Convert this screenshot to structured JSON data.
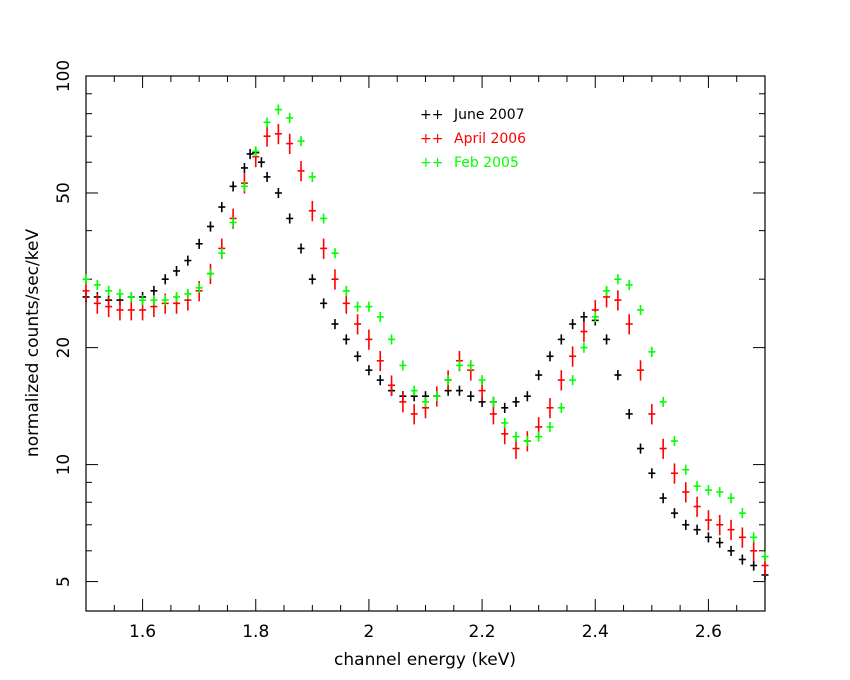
{
  "chart_data": {
    "type": "scatter",
    "title": "",
    "xlabel": "channel energy (keV)",
    "ylabel": "normalized counts/sec/keV",
    "xlim": [
      1.5,
      2.7
    ],
    "ylim": [
      4.2,
      100
    ],
    "yscale": "log",
    "xticks": [
      1.6,
      1.8,
      2,
      2.2,
      2.4,
      2.6
    ],
    "xticklabels": [
      "1.6",
      "1.8",
      "2",
      "2.2",
      "2.4",
      "2.6"
    ],
    "yticks": [
      5,
      10,
      20,
      50,
      100
    ],
    "yticklabels": [
      "5",
      "10",
      "20",
      "50",
      "100"
    ],
    "legend_position": "top-center",
    "series": [
      {
        "name": "June 2007",
        "color": "#000000",
        "points": [
          [
            1.5,
            27
          ],
          [
            1.52,
            27
          ],
          [
            1.54,
            26.5
          ],
          [
            1.56,
            26.5
          ],
          [
            1.58,
            27
          ],
          [
            1.6,
            27
          ],
          [
            1.62,
            28
          ],
          [
            1.64,
            30
          ],
          [
            1.66,
            31.5
          ],
          [
            1.68,
            33.5
          ],
          [
            1.7,
            37
          ],
          [
            1.72,
            41
          ],
          [
            1.74,
            46
          ],
          [
            1.76,
            52
          ],
          [
            1.78,
            58
          ],
          [
            1.79,
            63
          ],
          [
            1.8,
            63.5
          ],
          [
            1.81,
            60
          ],
          [
            1.82,
            55
          ],
          [
            1.84,
            50
          ],
          [
            1.86,
            43
          ],
          [
            1.88,
            36
          ],
          [
            1.9,
            30
          ],
          [
            1.92,
            26
          ],
          [
            1.94,
            23
          ],
          [
            1.96,
            21
          ],
          [
            1.98,
            19
          ],
          [
            2.0,
            17.5
          ],
          [
            2.02,
            16.5
          ],
          [
            2.04,
            15.5
          ],
          [
            2.06,
            15
          ],
          [
            2.08,
            15
          ],
          [
            2.1,
            15
          ],
          [
            2.12,
            15
          ],
          [
            2.14,
            15.5
          ],
          [
            2.16,
            15.5
          ],
          [
            2.18,
            15
          ],
          [
            2.2,
            14.5
          ],
          [
            2.22,
            14.5
          ],
          [
            2.24,
            14
          ],
          [
            2.26,
            14.5
          ],
          [
            2.28,
            15
          ],
          [
            2.3,
            17
          ],
          [
            2.32,
            19
          ],
          [
            2.34,
            21
          ],
          [
            2.36,
            23
          ],
          [
            2.38,
            24
          ],
          [
            2.4,
            23.5
          ],
          [
            2.42,
            21
          ],
          [
            2.44,
            17
          ],
          [
            2.46,
            13.5
          ],
          [
            2.48,
            11
          ],
          [
            2.5,
            9.5
          ],
          [
            2.52,
            8.2
          ],
          [
            2.54,
            7.5
          ],
          [
            2.56,
            7
          ],
          [
            2.58,
            6.8
          ],
          [
            2.6,
            6.5
          ],
          [
            2.62,
            6.3
          ],
          [
            2.64,
            6
          ],
          [
            2.66,
            5.7
          ],
          [
            2.68,
            5.5
          ],
          [
            2.7,
            5.2
          ]
        ]
      },
      {
        "name": "April 2006",
        "color": "#ff0000",
        "points": [
          [
            1.5,
            28
          ],
          [
            1.52,
            26
          ],
          [
            1.54,
            25.5
          ],
          [
            1.56,
            25
          ],
          [
            1.58,
            25
          ],
          [
            1.6,
            25
          ],
          [
            1.62,
            25.5
          ],
          [
            1.64,
            26
          ],
          [
            1.66,
            26
          ],
          [
            1.68,
            26.5
          ],
          [
            1.7,
            28
          ],
          [
            1.72,
            31
          ],
          [
            1.74,
            36
          ],
          [
            1.76,
            43
          ],
          [
            1.78,
            53
          ],
          [
            1.8,
            62
          ],
          [
            1.82,
            70
          ],
          [
            1.84,
            71
          ],
          [
            1.86,
            67
          ],
          [
            1.88,
            57
          ],
          [
            1.9,
            45
          ],
          [
            1.92,
            36
          ],
          [
            1.94,
            30
          ],
          [
            1.96,
            26
          ],
          [
            1.98,
            23
          ],
          [
            2.0,
            21
          ],
          [
            2.02,
            18.5
          ],
          [
            2.04,
            16
          ],
          [
            2.06,
            14.5
          ],
          [
            2.08,
            13.5
          ],
          [
            2.1,
            14
          ],
          [
            2.12,
            15
          ],
          [
            2.14,
            16.5
          ],
          [
            2.16,
            18.5
          ],
          [
            2.18,
            17.5
          ],
          [
            2.2,
            15.5
          ],
          [
            2.22,
            13.5
          ],
          [
            2.24,
            12
          ],
          [
            2.26,
            11
          ],
          [
            2.28,
            11.5
          ],
          [
            2.3,
            12.5
          ],
          [
            2.32,
            14
          ],
          [
            2.34,
            16.5
          ],
          [
            2.36,
            19
          ],
          [
            2.38,
            22
          ],
          [
            2.4,
            25
          ],
          [
            2.42,
            27
          ],
          [
            2.44,
            26.5
          ],
          [
            2.46,
            23
          ],
          [
            2.48,
            17.5
          ],
          [
            2.5,
            13.5
          ],
          [
            2.52,
            11
          ],
          [
            2.54,
            9.5
          ],
          [
            2.56,
            8.5
          ],
          [
            2.58,
            7.8
          ],
          [
            2.6,
            7.2
          ],
          [
            2.62,
            7
          ],
          [
            2.64,
            6.8
          ],
          [
            2.66,
            6.5
          ],
          [
            2.68,
            6
          ],
          [
            2.7,
            5.5
          ]
        ]
      },
      {
        "name": "Feb 2005",
        "color": "#00ff00",
        "points": [
          [
            1.5,
            30
          ],
          [
            1.52,
            29
          ],
          [
            1.54,
            28
          ],
          [
            1.56,
            27.5
          ],
          [
            1.58,
            27
          ],
          [
            1.6,
            26.5
          ],
          [
            1.62,
            26.5
          ],
          [
            1.64,
            26.5
          ],
          [
            1.66,
            27
          ],
          [
            1.68,
            27.5
          ],
          [
            1.7,
            28.5
          ],
          [
            1.72,
            31
          ],
          [
            1.74,
            35
          ],
          [
            1.76,
            42
          ],
          [
            1.78,
            52
          ],
          [
            1.8,
            64
          ],
          [
            1.82,
            76
          ],
          [
            1.84,
            82
          ],
          [
            1.86,
            78
          ],
          [
            1.88,
            68
          ],
          [
            1.9,
            55
          ],
          [
            1.92,
            43
          ],
          [
            1.94,
            35
          ],
          [
            1.96,
            28
          ],
          [
            1.98,
            25.5
          ],
          [
            2.0,
            25.5
          ],
          [
            2.02,
            24
          ],
          [
            2.04,
            21
          ],
          [
            2.06,
            18
          ],
          [
            2.08,
            15.5
          ],
          [
            2.1,
            14.5
          ],
          [
            2.12,
            15
          ],
          [
            2.14,
            16.5
          ],
          [
            2.16,
            18
          ],
          [
            2.18,
            18
          ],
          [
            2.2,
            16.5
          ],
          [
            2.22,
            14.5
          ],
          [
            2.24,
            12.8
          ],
          [
            2.26,
            11.8
          ],
          [
            2.28,
            11.5
          ],
          [
            2.3,
            11.8
          ],
          [
            2.32,
            12.5
          ],
          [
            2.34,
            14
          ],
          [
            2.36,
            16.5
          ],
          [
            2.38,
            20
          ],
          [
            2.4,
            24
          ],
          [
            2.42,
            28
          ],
          [
            2.44,
            30
          ],
          [
            2.46,
            29
          ],
          [
            2.48,
            25
          ],
          [
            2.5,
            19.5
          ],
          [
            2.52,
            14.5
          ],
          [
            2.54,
            11.5
          ],
          [
            2.56,
            9.7
          ],
          [
            2.58,
            8.8
          ],
          [
            2.6,
            8.6
          ],
          [
            2.62,
            8.5
          ],
          [
            2.64,
            8.2
          ],
          [
            2.66,
            7.5
          ],
          [
            2.68,
            6.5
          ],
          [
            2.7,
            5.8
          ]
        ]
      }
    ]
  }
}
